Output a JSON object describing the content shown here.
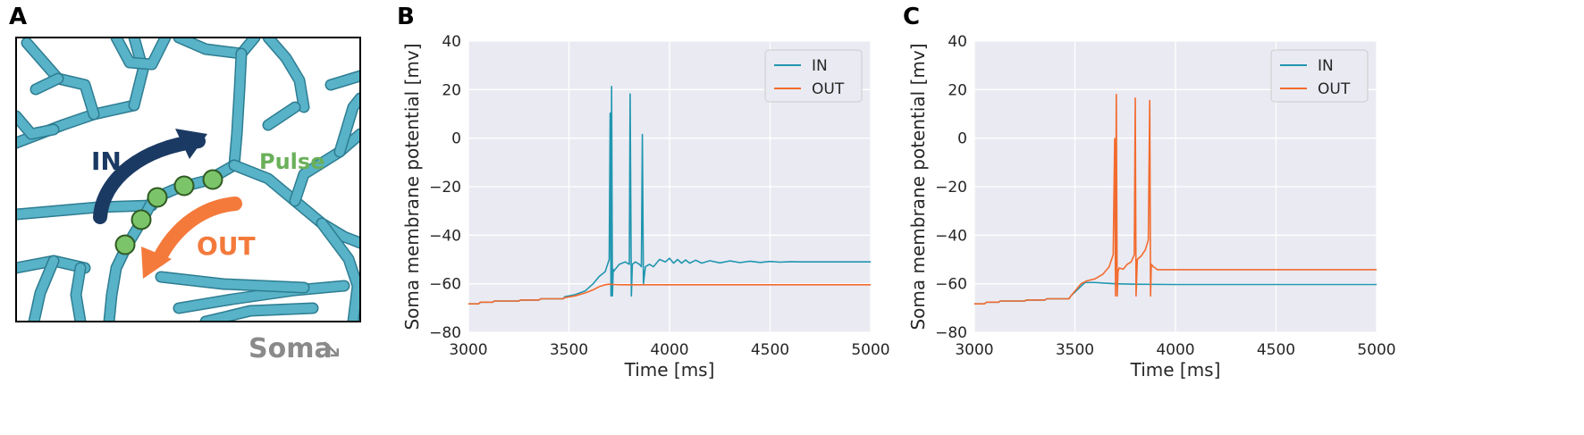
{
  "panels": {
    "a": {
      "letter": "A"
    },
    "b": {
      "letter": "B"
    },
    "c": {
      "letter": "C"
    }
  },
  "diagram": {
    "in_label": "IN",
    "out_label": "OUT",
    "pulse_label": "Pulse",
    "soma_label": "Soma",
    "soma_arrow": "↘",
    "colors": {
      "dendrite": "#58b2c8",
      "in_arrow": "#1b3a63",
      "out_arrow": "#f47a3c",
      "pulse": "#7cc46a",
      "pulse_text": "#6ab05a",
      "soma_text": "#8a8a8a"
    }
  },
  "chart_data": [
    {
      "type": "line",
      "panel": "B",
      "xlabel": "Time [ms]",
      "ylabel": "Soma membrane potential [mv]",
      "xlim": [
        3000,
        5000
      ],
      "ylim": [
        -80,
        40
      ],
      "xticks": [
        "3000",
        "3500",
        "4000",
        "4500",
        "5000"
      ],
      "yticks": [
        "−80",
        "−60",
        "−40",
        "−20",
        "0",
        "20",
        "40"
      ],
      "grid": true,
      "legend": "top-right",
      "series": [
        {
          "name": "IN",
          "color": "#2196b0",
          "x": [
            3000,
            3050,
            3060,
            3120,
            3130,
            3250,
            3260,
            3350,
            3360,
            3470,
            3480,
            3530,
            3580,
            3620,
            3650,
            3680,
            3700,
            3705,
            3709,
            3712,
            3716,
            3720,
            3722,
            3730,
            3750,
            3780,
            3800,
            3804,
            3810,
            3815,
            3830,
            3850,
            3860,
            3865,
            3870,
            3880,
            3900,
            3920,
            3950,
            3980,
            4000,
            4020,
            4040,
            4060,
            4080,
            4100,
            4130,
            4160,
            4200,
            4250,
            4300,
            4350,
            4400,
            4450,
            4500,
            4550,
            4600,
            4650,
            4700,
            4800,
            4900,
            5000
          ],
          "y": [
            -68.3,
            -68.3,
            -67.6,
            -67.6,
            -67.1,
            -67.1,
            -66.7,
            -66.7,
            -66.2,
            -66.2,
            -65.3,
            -64.5,
            -63,
            -60,
            -57,
            -55,
            -50,
            10.3,
            -65,
            21.3,
            -65,
            -54,
            -55,
            -54,
            -52,
            -51,
            -52,
            18.2,
            -65,
            -52,
            -51,
            -52,
            -53,
            1.5,
            -60,
            -53,
            -52,
            -53,
            -50,
            -51,
            -49.5,
            -51.5,
            -50,
            -51.5,
            -50.2,
            -51.5,
            -50.3,
            -51.5,
            -50.5,
            -51.4,
            -50.6,
            -51.3,
            -50.7,
            -51.2,
            -50.8,
            -51.1,
            -50.9,
            -51,
            -51,
            -51,
            -51,
            -51
          ]
        },
        {
          "name": "OUT",
          "color": "#f26b2e",
          "x": [
            3000,
            3050,
            3060,
            3120,
            3130,
            3250,
            3260,
            3350,
            3360,
            3470,
            3480,
            3530,
            3580,
            3620,
            3650,
            3680,
            3700,
            3720,
            3760,
            3800,
            3900,
            4000,
            4500,
            5000
          ],
          "y": [
            -68.3,
            -68.3,
            -67.6,
            -67.6,
            -67.1,
            -67.1,
            -66.7,
            -66.7,
            -66.2,
            -66.2,
            -65.7,
            -65,
            -63.8,
            -62.5,
            -61.2,
            -60.4,
            -60.2,
            -60.3,
            -60.4,
            -60.4,
            -60.4,
            -60.4,
            -60.4,
            -60.4
          ]
        }
      ]
    },
    {
      "type": "line",
      "panel": "C",
      "xlabel": "Time [ms]",
      "ylabel": "Soma membrane potential [mv]",
      "xlim": [
        3000,
        5000
      ],
      "ylim": [
        -80,
        40
      ],
      "xticks": [
        "3000",
        "3500",
        "4000",
        "4500",
        "5000"
      ],
      "yticks": [
        "−80",
        "−60",
        "−40",
        "−20",
        "0",
        "20",
        "40"
      ],
      "grid": true,
      "legend": "top-right",
      "series": [
        {
          "name": "IN",
          "color": "#2196b0",
          "x": [
            3000,
            3050,
            3060,
            3120,
            3130,
            3250,
            3260,
            3350,
            3360,
            3470,
            3480,
            3530,
            3550,
            3600,
            3700,
            3800,
            4000,
            4500,
            5000
          ],
          "y": [
            -68.3,
            -68.3,
            -67.6,
            -67.6,
            -67.1,
            -67.1,
            -66.7,
            -66.7,
            -66.2,
            -66.2,
            -65,
            -61,
            -59.5,
            -59.5,
            -60,
            -60.2,
            -60.3,
            -60.3,
            -60.3
          ]
        },
        {
          "name": "OUT",
          "color": "#f26b2e",
          "x": [
            3000,
            3050,
            3060,
            3120,
            3130,
            3250,
            3260,
            3350,
            3360,
            3470,
            3480,
            3530,
            3560,
            3600,
            3640,
            3670,
            3690,
            3698,
            3702,
            3706,
            3710,
            3714,
            3720,
            3740,
            3760,
            3780,
            3795,
            3800,
            3804,
            3810,
            3830,
            3850,
            3865,
            3872,
            3876,
            3880,
            3890,
            3910,
            3950,
            4000,
            4500,
            5000
          ],
          "y": [
            -68.3,
            -68.3,
            -67.6,
            -67.6,
            -67.1,
            -67.1,
            -66.7,
            -66.7,
            -66.2,
            -66.2,
            -65,
            -60,
            -58.8,
            -58,
            -56,
            -53,
            -48,
            -0.2,
            -65,
            18,
            -65,
            -55,
            -53.5,
            -54,
            -52,
            -51,
            -48,
            16.5,
            -65,
            -50,
            -48.5,
            -46,
            -42,
            15.5,
            -65,
            -52,
            -53,
            -54.2,
            -54.2,
            -54.2,
            -54.2,
            -54.2
          ]
        }
      ]
    }
  ]
}
